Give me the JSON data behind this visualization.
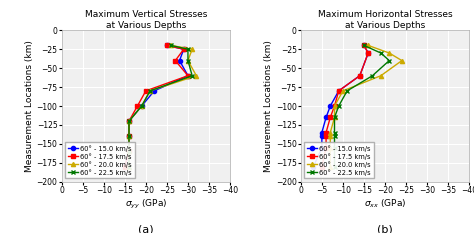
{
  "title_a": "Maximum Vertical Stresses\nat Various Depths",
  "title_b": "Maximum Horizontal Stresses\nat Various Depths",
  "xlabel_a": "$\\sigma_{yy}$ (GPa)",
  "xlabel_b": "$\\sigma_{xx}$ (GPa)",
  "ylabel": "Measurement Locations (km)",
  "label_a": "(a)",
  "label_b": "(b)",
  "xticks": [
    0,
    -5,
    -10,
    -15,
    -20,
    -25,
    -30,
    -35,
    -40
  ],
  "yticks": [
    0,
    -25,
    -50,
    -75,
    -100,
    -125,
    -150,
    -175,
    -200
  ],
  "legend_labels": [
    "60° - 15.0 km/s",
    "60° - 17.5 km/s",
    "60° - 20.0 km/s",
    "60° - 22.5 km/s"
  ],
  "syy": {
    "blue": {
      "depths": [
        -20,
        -25,
        -40,
        -60,
        -80,
        -100,
        -120,
        -140,
        -160,
        -180
      ],
      "stress": [
        -25,
        -29,
        -28,
        -30,
        -22,
        -19,
        -16,
        -16,
        -16,
        -15
      ]
    },
    "red": {
      "depths": [
        -20,
        -25,
        -40,
        -60,
        -80,
        -100,
        -120,
        -140,
        -160,
        -180
      ],
      "stress": [
        -25,
        -29,
        -27,
        -30,
        -20,
        -18,
        -16,
        -16,
        -16,
        -15
      ]
    },
    "gold": {
      "depths": [
        -20,
        -25,
        -40,
        -60,
        -80,
        -100,
        -120,
        -140,
        -160,
        -180
      ],
      "stress": [
        -26,
        -31,
        -30,
        -32,
        -21,
        -19,
        -16,
        -16,
        -16,
        -16
      ]
    },
    "dkgrn": {
      "depths": [
        -20,
        -25,
        -40,
        -60,
        -80,
        -100,
        -120,
        -140,
        -160,
        -180
      ],
      "stress": [
        -26,
        -30,
        -30,
        -31,
        -21,
        -19,
        -16,
        -16,
        -16,
        -16
      ]
    }
  },
  "sxx": {
    "blue": {
      "depths": [
        -20,
        -30,
        -60,
        -80,
        -100,
        -115,
        -135,
        -140,
        -155,
        -180
      ],
      "stress": [
        -15,
        -16,
        -14,
        -9,
        -7,
        -6,
        -5,
        -5,
        -5,
        -3
      ]
    },
    "red": {
      "depths": [
        -20,
        -30,
        -60,
        -80,
        -100,
        -115,
        -135,
        -140,
        -155,
        -180
      ],
      "stress": [
        -15,
        -16,
        -14,
        -9,
        -8,
        -7,
        -6,
        -6,
        -6,
        -5
      ]
    },
    "gold": {
      "depths": [
        -20,
        -30,
        -40,
        -60,
        -80,
        -100,
        -115,
        -135,
        -140,
        -155,
        -180
      ],
      "stress": [
        -16,
        -21,
        -24,
        -19,
        -10,
        -8,
        -8,
        -7,
        -7,
        -7,
        -7
      ]
    },
    "dkgrn": {
      "depths": [
        -20,
        -30,
        -40,
        -60,
        -80,
        -100,
        -115,
        -135,
        -140,
        -155,
        -180
      ],
      "stress": [
        -15,
        -19,
        -21,
        -17,
        -11,
        -9,
        -8,
        -8,
        -8,
        -8,
        -8
      ]
    }
  },
  "color_map": {
    "blue": [
      "#0000ff",
      "o"
    ],
    "red": [
      "#ff0000",
      "s"
    ],
    "gold": [
      "#ccaa00",
      "^"
    ],
    "dkgrn": [
      "#007700",
      "x"
    ]
  },
  "bg_color": "#f0f0f0",
  "grid_color": "white",
  "title_fontsize": 6.5,
  "label_fontsize": 6.5,
  "tick_fontsize": 5.5,
  "legend_fontsize": 4.8,
  "markersize": 3.0,
  "linewidth": 1.0
}
